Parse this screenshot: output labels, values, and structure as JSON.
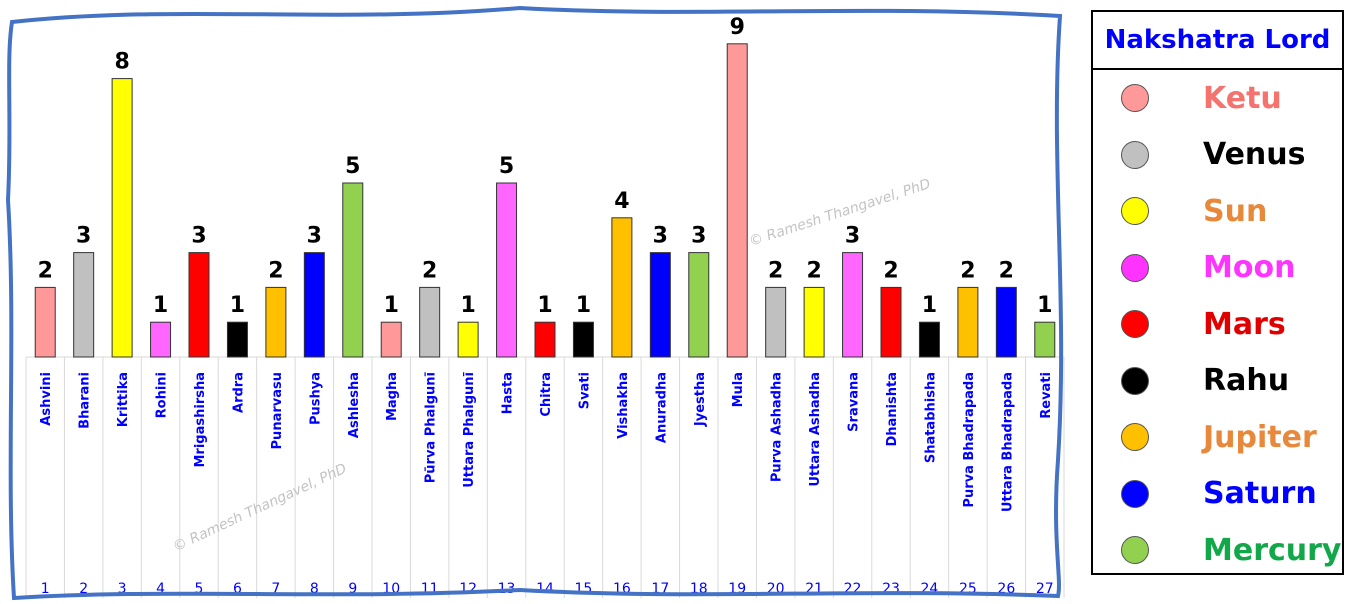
{
  "chart_data": {
    "type": "bar",
    "categories": [
      "Ashvini",
      "Bharani",
      "Krittika",
      "Rohini",
      "Mrigashirsha",
      "Ardra",
      "Punarvasu",
      "Pushya",
      "Ashlesha",
      "Magha",
      "Pūrva Phalgunī",
      "Uttara Phalgunī",
      "Hasta",
      "Chitra",
      "Svati",
      "Vishakha",
      "Anuradha",
      "Jyestha",
      "Mula",
      "Purva Ashadha",
      "Uttara Ashadha",
      "Sravana",
      "Dhanishta",
      "Shatabhisha",
      "Purva Bhadrapada",
      "Uttara Bhadrapada",
      "Revati"
    ],
    "numbers": [
      "1",
      "2",
      "3",
      "4",
      "5",
      "6",
      "7",
      "8",
      "9",
      "10",
      "11",
      "12",
      "13",
      "14",
      "15",
      "16",
      "17",
      "18",
      "19",
      "20",
      "21",
      "22",
      "23",
      "24",
      "25",
      "26",
      "27"
    ],
    "values": [
      2,
      3,
      8,
      1,
      3,
      1,
      2,
      3,
      5,
      1,
      2,
      1,
      5,
      1,
      1,
      4,
      3,
      3,
      9,
      2,
      2,
      3,
      2,
      1,
      2,
      2,
      1
    ],
    "bar_colors": [
      "#ff9999",
      "#c0c0c0",
      "#ffff00",
      "#ff66ff",
      "#ff0000",
      "#000000",
      "#ffc000",
      "#0000ff",
      "#92d050",
      "#ff9999",
      "#c0c0c0",
      "#ffff00",
      "#ff66ff",
      "#ff0000",
      "#000000",
      "#ffc000",
      "#0000ff",
      "#92d050",
      "#ff9999",
      "#c0c0c0",
      "#ffff00",
      "#ff66ff",
      "#ff0000",
      "#000000",
      "#ffc000",
      "#0000ff",
      "#92d050"
    ],
    "ylim": [
      0,
      9
    ]
  },
  "legend": {
    "title": "Nakshatra Lord",
    "items": [
      {
        "label": "Ketu",
        "dot": "#ff9999",
        "text_color": "#f4736f"
      },
      {
        "label": "Venus",
        "dot": "#c0c0c0",
        "text_color": "#000000"
      },
      {
        "label": "Sun",
        "dot": "#ffff00",
        "text_color": "#e8883a"
      },
      {
        "label": "Moon",
        "dot": "#ff33ff",
        "text_color": "#ff33ff"
      },
      {
        "label": "Mars",
        "dot": "#ff0000",
        "text_color": "#e00000"
      },
      {
        "label": "Rahu",
        "dot": "#000000",
        "text_color": "#000000"
      },
      {
        "label": "Jupiter",
        "dot": "#ffc000",
        "text_color": "#e8883a"
      },
      {
        "label": "Saturn",
        "dot": "#0000ff",
        "text_color": "#0000ff"
      },
      {
        "label": "Mercury",
        "dot": "#92d050",
        "text_color": "#12a84a"
      }
    ]
  },
  "watermark": "© Ramesh Thangavel, PhD",
  "colors": {
    "frame": "#4472c4",
    "category_text": "#0000ff",
    "grid": "#d9d9d9"
  }
}
